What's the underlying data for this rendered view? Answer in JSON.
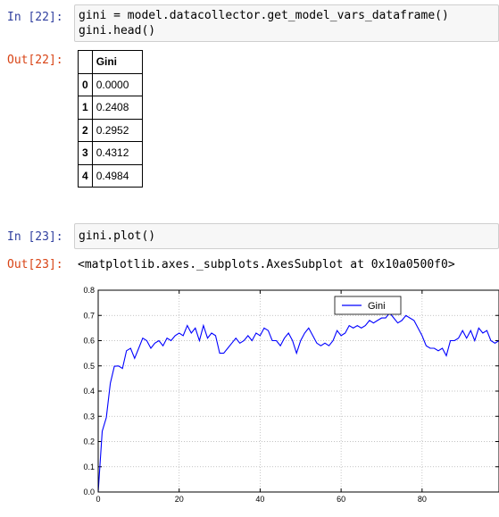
{
  "cells": [
    {
      "in_prompt": "In [22]:",
      "code_lines": [
        "gini = model.datacollector.get_model_vars_dataframe()",
        "gini.head()"
      ],
      "out_prompt": "Out[22]:",
      "table": {
        "columns": [
          "Gini"
        ],
        "rows": [
          {
            "index": "0",
            "value": "0.0000"
          },
          {
            "index": "1",
            "value": "0.2408"
          },
          {
            "index": "2",
            "value": "0.2952"
          },
          {
            "index": "3",
            "value": "0.4312"
          },
          {
            "index": "4",
            "value": "0.4984"
          }
        ]
      }
    },
    {
      "in_prompt": "In [23]:",
      "code_lines": [
        "gini.plot()"
      ],
      "out_prompt": "Out[23]:",
      "output_text": "<matplotlib.axes._subplots.AxesSubplot at 0x10a0500f0>"
    }
  ],
  "colors": {
    "in_prompt": "#303f9f",
    "out_prompt": "#d84315",
    "line": "#0000ff",
    "input_bg": "#f7f7f7"
  },
  "chart_data": {
    "type": "line",
    "title": "",
    "xlabel": "",
    "ylabel": "",
    "xlim": [
      0,
      99
    ],
    "ylim": [
      0.0,
      0.8
    ],
    "xticks": [
      "0",
      "20",
      "40",
      "60",
      "80"
    ],
    "yticks": [
      "0.0",
      "0.1",
      "0.2",
      "0.3",
      "0.4",
      "0.5",
      "0.6",
      "0.7",
      "0.8"
    ],
    "grid": true,
    "legend_position": "top-right",
    "series": [
      {
        "name": "Gini",
        "color": "#0000ff",
        "x": [
          0,
          1,
          2,
          3,
          4,
          5,
          6,
          7,
          8,
          9,
          10,
          11,
          12,
          13,
          14,
          15,
          16,
          17,
          18,
          19,
          20,
          21,
          22,
          23,
          24,
          25,
          26,
          27,
          28,
          29,
          30,
          31,
          32,
          33,
          34,
          35,
          36,
          37,
          38,
          39,
          40,
          41,
          42,
          43,
          44,
          45,
          46,
          47,
          48,
          49,
          50,
          51,
          52,
          53,
          54,
          55,
          56,
          57,
          58,
          59,
          60,
          61,
          62,
          63,
          64,
          65,
          66,
          67,
          68,
          69,
          70,
          71,
          72,
          73,
          74,
          75,
          76,
          77,
          78,
          79,
          80,
          81,
          82,
          83,
          84,
          85,
          86,
          87,
          88,
          89,
          90,
          91,
          92,
          93,
          94,
          95,
          96,
          97,
          98,
          99
        ],
        "values": [
          0.0,
          0.2408,
          0.2952,
          0.4312,
          0.4984,
          0.5,
          0.49,
          0.56,
          0.57,
          0.53,
          0.57,
          0.61,
          0.6,
          0.57,
          0.59,
          0.6,
          0.58,
          0.61,
          0.6,
          0.62,
          0.63,
          0.62,
          0.66,
          0.63,
          0.65,
          0.6,
          0.66,
          0.61,
          0.63,
          0.62,
          0.55,
          0.55,
          0.57,
          0.59,
          0.61,
          0.59,
          0.6,
          0.62,
          0.6,
          0.63,
          0.62,
          0.65,
          0.64,
          0.6,
          0.6,
          0.58,
          0.61,
          0.63,
          0.6,
          0.55,
          0.6,
          0.63,
          0.65,
          0.62,
          0.59,
          0.58,
          0.59,
          0.58,
          0.6,
          0.64,
          0.62,
          0.63,
          0.66,
          0.65,
          0.66,
          0.65,
          0.66,
          0.68,
          0.67,
          0.68,
          0.69,
          0.69,
          0.71,
          0.69,
          0.67,
          0.68,
          0.7,
          0.69,
          0.68,
          0.65,
          0.62,
          0.58,
          0.57,
          0.57,
          0.56,
          0.57,
          0.54,
          0.6,
          0.6,
          0.61,
          0.64,
          0.61,
          0.64,
          0.6,
          0.65,
          0.63,
          0.64,
          0.6,
          0.59,
          0.6
        ]
      }
    ]
  }
}
